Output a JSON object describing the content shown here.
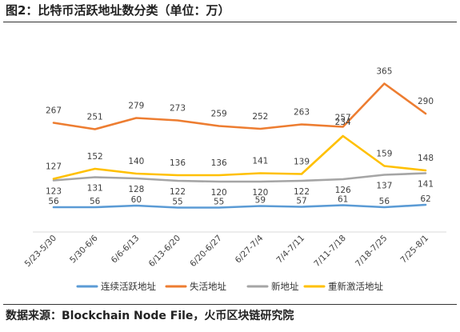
{
  "title": "图2：比特币活跃地址数分类（单位：万）",
  "source": "数据来源：Blockchain Node File，火币区块链研究院",
  "chart_data": {
    "type": "line",
    "title": "",
    "xlabel": "",
    "ylabel": "",
    "ylim": [
      0,
      400
    ],
    "grid": false,
    "legend_position": "bottom",
    "categories": [
      "5/23-5/30",
      "5/30-6/6",
      "6/6-6/13",
      "6/13-6/20",
      "6/20-6/27",
      "6/27-7/4",
      "7/4-7/11",
      "7/11-7/18",
      "7/18-7/25",
      "7/25-8/1"
    ],
    "series": [
      {
        "name": "连续活跃地址",
        "color": "#5b9bd5",
        "values": [
          56,
          56,
          60,
          55,
          55,
          59,
          57,
          61,
          56,
          62
        ]
      },
      {
        "name": "失活地址",
        "color": "#ed7d31",
        "values": [
          267,
          251,
          279,
          273,
          259,
          252,
          263,
          257,
          365,
          290
        ]
      },
      {
        "name": "新地址",
        "color": "#a5a5a5",
        "values": [
          123,
          131,
          128,
          122,
          120,
          120,
          122,
          126,
          137,
          141
        ]
      },
      {
        "name": "重新激活地址",
        "color": "#ffc000",
        "values": [
          127,
          152,
          140,
          136,
          136,
          141,
          139,
          234,
          159,
          148
        ]
      }
    ]
  }
}
